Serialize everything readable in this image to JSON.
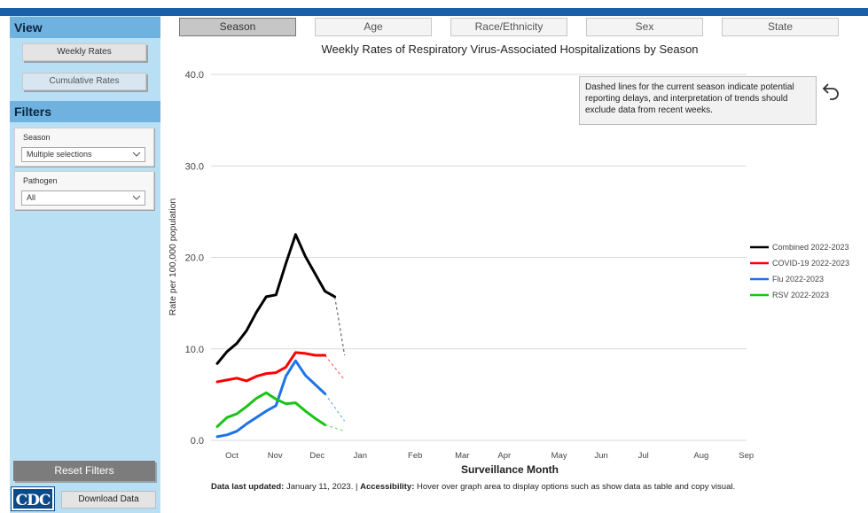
{
  "sidebar": {
    "view_heading": "View",
    "view_buttons": [
      "Weekly Rates",
      "Cumulative Rates"
    ],
    "filters_heading": "Filters",
    "filters": [
      {
        "label": "Season",
        "value": "Multiple selections"
      },
      {
        "label": "Pathogen",
        "value": "All"
      }
    ],
    "reset_label": "Reset Filters",
    "download_label": "Download Data",
    "logo_text": "CDC"
  },
  "tabs": [
    "Season",
    "Age",
    "Race/Ethnicity",
    "Sex",
    "State"
  ],
  "active_tab": "Season",
  "note": "Dashed lines for the current season indicate potential reporting delays, and interpretation of trends should exclude data from recent weeks.",
  "footer": {
    "updated_label": "Data last updated:",
    "updated_value": " January 11, 2023. | ",
    "access_label": "Accessibility:",
    "access_text": " Hover over graph area to display options such as show data as table and copy visual."
  },
  "chart_data": {
    "type": "line",
    "title": "Weekly Rates of Respiratory Virus-Associated Hospitalizations by Season",
    "xlabel": "Surveillance Month",
    "ylabel": "Rate per 100,000 population",
    "ylim": [
      0,
      40
    ],
    "yticks": [
      "0.0",
      "10.0",
      "20.0",
      "30.0",
      "40.0"
    ],
    "x_unit": "week index from start of October",
    "xlim": [
      0,
      52
    ],
    "month_ticks": [
      {
        "label": "Oct",
        "x": 1.5
      },
      {
        "label": "Nov",
        "x": 5.9
      },
      {
        "label": "Dec",
        "x": 10.2
      },
      {
        "label": "Jan",
        "x": 14.6
      },
      {
        "label": "Feb",
        "x": 20.2
      },
      {
        "label": "Mar",
        "x": 25
      },
      {
        "label": "Apr",
        "x": 29.3
      },
      {
        "label": "May",
        "x": 34.9
      },
      {
        "label": "Jun",
        "x": 39.2
      },
      {
        "label": "Jul",
        "x": 43.5
      },
      {
        "label": "Aug",
        "x": 49.4
      },
      {
        "label": "Sep",
        "x": 54
      }
    ],
    "grid": true,
    "legend_position": "right",
    "series": [
      {
        "name": "Combined 2022-2023",
        "color": "#000000",
        "x": [
          0,
          1,
          2,
          3,
          4,
          5,
          6,
          7,
          8,
          9,
          10,
          11,
          12
        ],
        "values": [
          8.4,
          9.7,
          10.6,
          12.0,
          14.0,
          15.7,
          15.9,
          19.3,
          22.5,
          20.1,
          18.2,
          16.3,
          15.7
        ],
        "dashed_x": [
          12,
          13
        ],
        "dashed_values": [
          15.7,
          9.3
        ]
      },
      {
        "name": "COVID-19 2022-2023",
        "color": "#ff0000",
        "x": [
          0,
          1,
          2,
          3,
          4,
          5,
          6,
          7,
          8,
          9,
          10,
          11
        ],
        "values": [
          6.4,
          6.6,
          6.8,
          6.5,
          7.0,
          7.3,
          7.4,
          8.0,
          9.6,
          9.5,
          9.3,
          9.3
        ],
        "dashed_x": [
          11,
          13
        ],
        "dashed_values": [
          9.3,
          6.6
        ]
      },
      {
        "name": "Flu 2022-2023",
        "color": "#1e74e6",
        "x": [
          0,
          1,
          2,
          3,
          4,
          5,
          6,
          7,
          8,
          9,
          10,
          11
        ],
        "values": [
          0.4,
          0.6,
          1.0,
          1.8,
          2.5,
          3.2,
          3.8,
          7.0,
          8.7,
          7.1,
          6.1,
          5.1
        ],
        "dashed_x": [
          11,
          13
        ],
        "dashed_values": [
          5.1,
          2.1
        ]
      },
      {
        "name": "RSV 2022-2023",
        "color": "#19c416",
        "x": [
          0,
          1,
          2,
          3,
          4,
          5,
          6,
          7,
          8,
          9,
          10,
          11
        ],
        "values": [
          1.5,
          2.5,
          2.9,
          3.7,
          4.6,
          5.2,
          4.5,
          4.0,
          4.1,
          3.2,
          2.4,
          1.7
        ],
        "dashed_x": [
          11,
          13
        ],
        "dashed_values": [
          1.7,
          1.0
        ]
      }
    ]
  }
}
